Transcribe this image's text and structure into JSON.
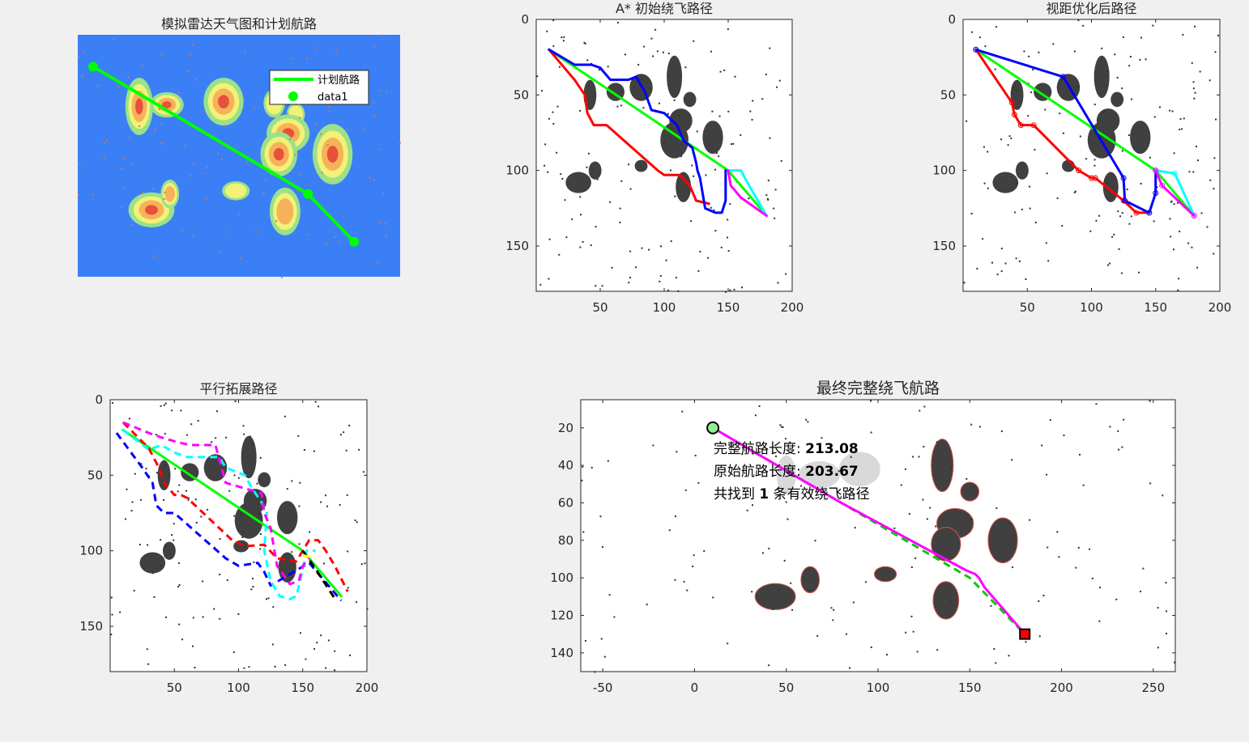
{
  "chart_data": [
    {
      "type": "heatmap",
      "title": "模拟雷达天气图和计划航路",
      "colors": {
        "background": "#3a7ff6",
        "levels": [
          "#9be08a",
          "#f2f276",
          "#f6b25a",
          "#e8503a"
        ],
        "route": "#00ff00"
      },
      "legend": {
        "position": "top-right",
        "entries": [
          {
            "label": "计划航路",
            "style": "line"
          },
          {
            "label": "data1",
            "style": "marker"
          }
        ]
      },
      "route": {
        "x": [
          10,
          150,
          180
        ],
        "y": [
          20,
          100,
          130
        ]
      },
      "weather_cells": [
        {
          "x": 40,
          "y": 45,
          "rx": 9,
          "ry": 18,
          "intensity": 4
        },
        {
          "x": 58,
          "y": 44,
          "rx": 11,
          "ry": 8,
          "intensity": 4
        },
        {
          "x": 95,
          "y": 42,
          "rx": 13,
          "ry": 15,
          "intensity": 4
        },
        {
          "x": 128,
          "y": 43,
          "rx": 7,
          "ry": 9,
          "intensity": 2
        },
        {
          "x": 142,
          "y": 50,
          "rx": 6,
          "ry": 7,
          "intensity": 2
        },
        {
          "x": 137,
          "y": 62,
          "rx": 14,
          "ry": 12,
          "intensity": 4
        },
        {
          "x": 131,
          "y": 75,
          "rx": 12,
          "ry": 14,
          "intensity": 4
        },
        {
          "x": 166,
          "y": 75,
          "rx": 13,
          "ry": 19,
          "intensity": 4
        },
        {
          "x": 48,
          "y": 110,
          "rx": 15,
          "ry": 11,
          "intensity": 4
        },
        {
          "x": 60,
          "y": 100,
          "rx": 6,
          "ry": 9,
          "intensity": 3
        },
        {
          "x": 103,
          "y": 98,
          "rx": 9,
          "ry": 6,
          "intensity": 2
        },
        {
          "x": 135,
          "y": 111,
          "rx": 10,
          "ry": 15,
          "intensity": 3
        }
      ]
    },
    {
      "type": "line",
      "title": "A* 初始绕飞路径",
      "xlim": [
        0,
        200
      ],
      "ylim": [
        0,
        180
      ],
      "xticks": [
        50,
        100,
        150,
        200
      ],
      "yticks": [
        0,
        50,
        100,
        150
      ],
      "series": [
        {
          "color": "#00ff00",
          "x": [
            10,
            150,
            180
          ],
          "y": [
            20,
            100,
            130
          ]
        },
        {
          "color": "#ff0000",
          "x": [
            10,
            30,
            38,
            40,
            45,
            55,
            95,
            100,
            112,
            120,
            125,
            135
          ],
          "y": [
            20,
            40,
            50,
            62,
            70,
            70,
            100,
            103,
            103,
            110,
            120,
            122
          ]
        },
        {
          "color": "#0000ff",
          "x": [
            10,
            30,
            43,
            50,
            58,
            72,
            78,
            85,
            90,
            100,
            110,
            115,
            122,
            125,
            126,
            128,
            130,
            132,
            140,
            145,
            148,
            148
          ],
          "y": [
            20,
            30,
            30,
            32,
            40,
            40,
            38,
            48,
            60,
            62,
            70,
            80,
            85,
            95,
            100,
            105,
            115,
            125,
            128,
            128,
            120,
            100
          ]
        },
        {
          "color": "#00ffff",
          "x": [
            150,
            160,
            165,
            180
          ],
          "y": [
            100,
            100,
            108,
            130
          ]
        },
        {
          "color": "#ff00ff",
          "x": [
            150,
            152,
            160,
            180
          ],
          "y": [
            100,
            110,
            118,
            130
          ]
        }
      ],
      "obstacles": [
        {
          "x": 42,
          "y": 50,
          "rx": 5,
          "ry": 10
        },
        {
          "x": 62,
          "y": 48,
          "rx": 7,
          "ry": 6
        },
        {
          "x": 82,
          "y": 45,
          "rx": 9,
          "ry": 9
        },
        {
          "x": 108,
          "y": 38,
          "rx": 6,
          "ry": 14
        },
        {
          "x": 120,
          "y": 53,
          "rx": 5,
          "ry": 5
        },
        {
          "x": 113,
          "y": 67,
          "rx": 9,
          "ry": 8
        },
        {
          "x": 108,
          "y": 80,
          "rx": 11,
          "ry": 12
        },
        {
          "x": 138,
          "y": 78,
          "rx": 8,
          "ry": 11
        },
        {
          "x": 33,
          "y": 108,
          "rx": 10,
          "ry": 7
        },
        {
          "x": 46,
          "y": 100,
          "rx": 5,
          "ry": 6
        },
        {
          "x": 82,
          "y": 97,
          "rx": 5,
          "ry": 4
        },
        {
          "x": 115,
          "y": 111,
          "rx": 6,
          "ry": 10
        }
      ]
    },
    {
      "type": "line",
      "title": "视距优化后路径",
      "xlim": [
        0,
        200
      ],
      "ylim": [
        0,
        180
      ],
      "xticks": [
        50,
        100,
        150,
        200
      ],
      "yticks": [
        0,
        50,
        100,
        150
      ],
      "series": [
        {
          "color": "#00ff00",
          "x": [
            10,
            150,
            180
          ],
          "y": [
            20,
            100,
            130
          ]
        },
        {
          "color": "#ff0000",
          "x": [
            10,
            38,
            40,
            45,
            55,
            90,
            100,
            103,
            125,
            135,
            145
          ],
          "y": [
            20,
            55,
            63,
            70,
            70,
            100,
            105,
            105,
            120,
            128,
            128
          ]
        },
        {
          "color": "#0000ff",
          "x": [
            10,
            78,
            125,
            126,
            145,
            150,
            150
          ],
          "y": [
            20,
            38,
            105,
            120,
            128,
            115,
            100
          ]
        },
        {
          "color": "#00ffff",
          "x": [
            150,
            165,
            180
          ],
          "y": [
            100,
            102,
            130
          ]
        },
        {
          "color": "#ff00ff",
          "x": [
            150,
            155,
            180
          ],
          "y": [
            100,
            110,
            130
          ]
        }
      ],
      "obstacles": [
        {
          "x": 42,
          "y": 50,
          "rx": 5,
          "ry": 10
        },
        {
          "x": 62,
          "y": 48,
          "rx": 7,
          "ry": 6
        },
        {
          "x": 82,
          "y": 45,
          "rx": 9,
          "ry": 9
        },
        {
          "x": 108,
          "y": 38,
          "rx": 6,
          "ry": 14
        },
        {
          "x": 120,
          "y": 53,
          "rx": 5,
          "ry": 5
        },
        {
          "x": 113,
          "y": 67,
          "rx": 9,
          "ry": 8
        },
        {
          "x": 108,
          "y": 80,
          "rx": 11,
          "ry": 12
        },
        {
          "x": 138,
          "y": 78,
          "rx": 8,
          "ry": 11
        },
        {
          "x": 33,
          "y": 108,
          "rx": 10,
          "ry": 7
        },
        {
          "x": 46,
          "y": 100,
          "rx": 5,
          "ry": 6
        },
        {
          "x": 82,
          "y": 97,
          "rx": 5,
          "ry": 4
        },
        {
          "x": 115,
          "y": 111,
          "rx": 6,
          "ry": 10
        }
      ]
    },
    {
      "type": "line",
      "title": "平行拓展路径",
      "xlim": [
        0,
        200
      ],
      "ylim": [
        0,
        180
      ],
      "xticks": [
        50,
        100,
        150,
        200
      ],
      "yticks": [
        0,
        50,
        100,
        150
      ],
      "series": [
        {
          "color": "#00ff00",
          "dash": false,
          "x": [
            10,
            150,
            180
          ],
          "y": [
            20,
            100,
            130
          ]
        },
        {
          "color": "#ff0000",
          "dash": true,
          "x": [
            10,
            30,
            38,
            42,
            50,
            55,
            60,
            95,
            105,
            120,
            130,
            145,
            155,
            162,
            168,
            175,
            185
          ],
          "y": [
            15,
            32,
            45,
            55,
            63,
            63,
            65,
            93,
            97,
            96,
            105,
            107,
            93,
            93,
            100,
            110,
            127
          ]
        },
        {
          "color": "#0000ff",
          "dash": true,
          "x": [
            5,
            25,
            33,
            36,
            42,
            50,
            90,
            100,
            115,
            120,
            125,
            155,
            180
          ],
          "y": [
            22,
            45,
            55,
            70,
            75,
            75,
            105,
            110,
            108,
            114,
            123,
            108,
            133
          ]
        },
        {
          "color": "#00ffff",
          "dash": true,
          "x": [
            10,
            30,
            40,
            50,
            60,
            85,
            90,
            105,
            110,
            118,
            122,
            120,
            125,
            132,
            140,
            145,
            148,
            153,
            160
          ],
          "y": [
            20,
            33,
            30,
            35,
            38,
            38,
            45,
            50,
            58,
            68,
            75,
            100,
            120,
            130,
            132,
            130,
            120,
            100,
            100
          ]
        },
        {
          "color": "#ff00ff",
          "dash": true,
          "x": [
            10,
            30,
            40,
            52,
            62,
            82,
            90,
            110,
            118,
            120,
            125,
            130,
            140,
            147,
            150,
            155
          ],
          "y": [
            15,
            22,
            25,
            28,
            30,
            30,
            55,
            60,
            62,
            75,
            85,
            110,
            122,
            120,
            110,
            105
          ]
        },
        {
          "color": "#000000",
          "dash": true,
          "x": [
            150,
            160,
            176
          ],
          "y": [
            100,
            112,
            133
          ]
        },
        {
          "color": "#ffff00",
          "dash": true,
          "x": [
            150,
            160
          ],
          "y": [
            103,
            105
          ]
        }
      ],
      "obstacles": [
        {
          "x": 42,
          "y": 50,
          "rx": 5,
          "ry": 10
        },
        {
          "x": 62,
          "y": 48,
          "rx": 7,
          "ry": 6
        },
        {
          "x": 82,
          "y": 45,
          "rx": 9,
          "ry": 9
        },
        {
          "x": 108,
          "y": 38,
          "rx": 6,
          "ry": 14
        },
        {
          "x": 120,
          "y": 53,
          "rx": 5,
          "ry": 5
        },
        {
          "x": 113,
          "y": 67,
          "rx": 9,
          "ry": 8
        },
        {
          "x": 108,
          "y": 80,
          "rx": 11,
          "ry": 12
        },
        {
          "x": 138,
          "y": 78,
          "rx": 8,
          "ry": 11
        },
        {
          "x": 33,
          "y": 108,
          "rx": 10,
          "ry": 7
        },
        {
          "x": 46,
          "y": 100,
          "rx": 5,
          "ry": 6
        },
        {
          "x": 102,
          "y": 97,
          "rx": 6,
          "ry": 4
        },
        {
          "x": 138,
          "y": 111,
          "rx": 7,
          "ry": 10
        }
      ]
    },
    {
      "type": "line",
      "title": "最终完整绕飞航路",
      "xlim": [
        -62,
        262
      ],
      "ylim": [
        5,
        150
      ],
      "xticks": [
        -50,
        0,
        50,
        100,
        150,
        200,
        250
      ],
      "yticks": [
        20,
        40,
        60,
        80,
        100,
        120,
        140
      ],
      "series": [
        {
          "color": "#00cc00",
          "dash": true,
          "x": [
            10,
            80,
            150,
            180
          ],
          "y": [
            20,
            60,
            100,
            130
          ]
        },
        {
          "color": "#ff00ff",
          "dash": false,
          "x": [
            10,
            80,
            148,
            153,
            155,
            158,
            180
          ],
          "y": [
            20,
            60,
            96,
            98,
            100,
            105,
            130
          ]
        }
      ],
      "markers": {
        "start": {
          "x": 10,
          "y": 20,
          "color": "#90ee90"
        },
        "end": {
          "x": 180,
          "y": 130,
          "color": "#ff0000"
        }
      },
      "annotations": [
        {
          "label": "完整航路长度: ",
          "value": "213.08"
        },
        {
          "label": "原始航路长度: ",
          "value": "203.67"
        },
        {
          "label": "共找到 ",
          "value": "1",
          "suffix": " 条有效绕飞路径"
        }
      ],
      "obstacles": [
        {
          "x": 50,
          "y": 45,
          "rx": 5,
          "ry": 10,
          "gray": true
        },
        {
          "x": 68,
          "y": 45,
          "rx": 11,
          "ry": 7,
          "gray": true
        },
        {
          "x": 90,
          "y": 42,
          "rx": 11,
          "ry": 9,
          "gray": true
        },
        {
          "x": 135,
          "y": 40,
          "rx": 6,
          "ry": 14
        },
        {
          "x": 150,
          "y": 54,
          "rx": 5,
          "ry": 5
        },
        {
          "x": 142,
          "y": 71,
          "rx": 10,
          "ry": 8
        },
        {
          "x": 137,
          "y": 82,
          "rx": 8,
          "ry": 9
        },
        {
          "x": 168,
          "y": 80,
          "rx": 8,
          "ry": 12
        },
        {
          "x": 44,
          "y": 110,
          "rx": 11,
          "ry": 7
        },
        {
          "x": 63,
          "y": 101,
          "rx": 5,
          "ry": 7
        },
        {
          "x": 104,
          "y": 98,
          "rx": 6,
          "ry": 4
        },
        {
          "x": 137,
          "y": 112,
          "rx": 7,
          "ry": 10
        }
      ]
    }
  ]
}
